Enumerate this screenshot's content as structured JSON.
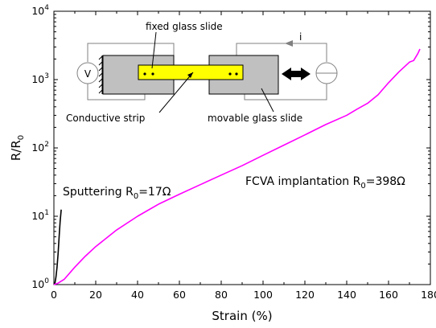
{
  "chart_data": {
    "type": "line",
    "xlabel": "Strain (%)",
    "ylabel": {
      "base": "R/R",
      "sub": "0"
    },
    "xlim": [
      0,
      180
    ],
    "ylim": [
      1,
      10000
    ],
    "yscale": "log",
    "x_ticks": [
      "0",
      "20",
      "40",
      "60",
      "80",
      "100",
      "120",
      "140",
      "160",
      "180"
    ],
    "y_ticks": [
      {
        "base": "10",
        "exp": "0"
      },
      {
        "base": "10",
        "exp": "1"
      },
      {
        "base": "10",
        "exp": "2"
      },
      {
        "base": "10",
        "exp": "3"
      },
      {
        "base": "10",
        "exp": "4"
      }
    ],
    "grid": false,
    "series": [
      {
        "key": "sputtering",
        "color": "#000000",
        "points": [
          [
            0,
            1
          ],
          [
            0.5,
            1.05
          ],
          [
            1,
            1.3
          ],
          [
            1.5,
            1.8
          ],
          [
            2,
            2.8
          ],
          [
            2.5,
            5
          ],
          [
            3,
            8.5
          ],
          [
            3.5,
            12.5
          ]
        ]
      },
      {
        "key": "fcva",
        "color": "#ff00ff",
        "points": [
          [
            0,
            1
          ],
          [
            2,
            1.05
          ],
          [
            5,
            1.2
          ],
          [
            10,
            1.8
          ],
          [
            15,
            2.6
          ],
          [
            20,
            3.6
          ],
          [
            30,
            6.3
          ],
          [
            40,
            10
          ],
          [
            50,
            15
          ],
          [
            60,
            21
          ],
          [
            70,
            29
          ],
          [
            80,
            40
          ],
          [
            90,
            55
          ],
          [
            100,
            78
          ],
          [
            110,
            110
          ],
          [
            120,
            155
          ],
          [
            130,
            220
          ],
          [
            140,
            300
          ],
          [
            145,
            370
          ],
          [
            150,
            450
          ],
          [
            155,
            600
          ],
          [
            160,
            900
          ],
          [
            165,
            1300
          ],
          [
            170,
            1800
          ],
          [
            172,
            1900
          ],
          [
            174,
            2400
          ],
          [
            175,
            2800
          ]
        ]
      }
    ],
    "annotations": [
      {
        "key": "sputtering",
        "text_before": "Sputtering R",
        "sub": "0",
        "text_after": "=17Ω"
      },
      {
        "key": "fcva",
        "text_before": "FCVA implantation R",
        "sub": "0",
        "text_after": "=398Ω"
      }
    ]
  },
  "inset": {
    "fixed_label": "fixed glass slide",
    "movable_label": "movable glass slide",
    "strip_label": "Conductive strip",
    "voltmeter_symbol": "V",
    "current_label": "i",
    "colors": {
      "slide_fill": "#c0c0c0",
      "strip_fill": "#ffff00",
      "wire": "#808080"
    }
  }
}
